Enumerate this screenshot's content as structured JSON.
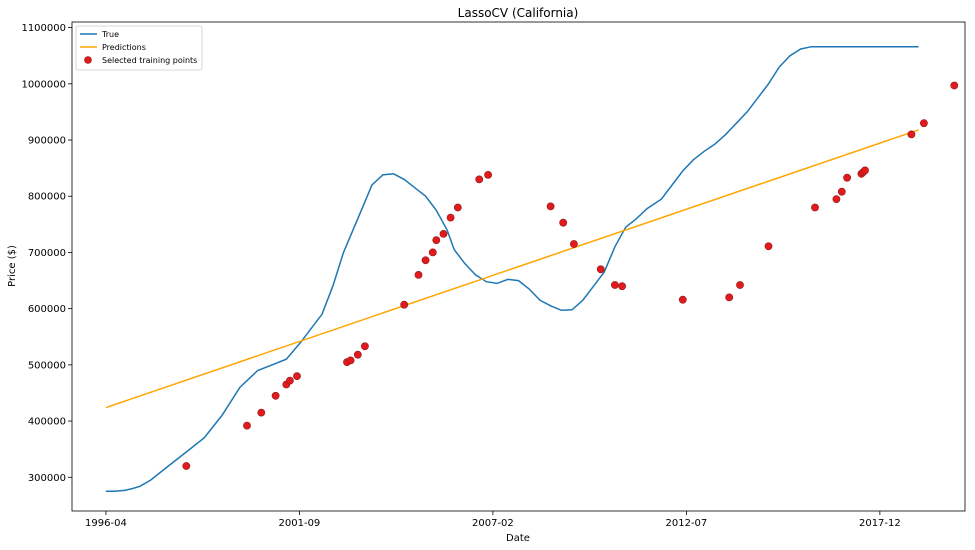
{
  "chart_data": {
    "type": "line",
    "title": "LassoCV (California)",
    "xlabel": "Date",
    "ylabel": "Price ($)",
    "x_ticks": [
      "1996-04",
      "2001-09",
      "2007-02",
      "2012-07",
      "2017-12"
    ],
    "y_ticks": [
      "300000",
      "400000",
      "500000",
      "600000",
      "700000",
      "800000",
      "900000",
      "1000000",
      "1100000"
    ],
    "xlim": [
      1995.3,
      2020.3
    ],
    "ylim": [
      240000,
      1110000
    ],
    "grid": false,
    "legend_position": "top-left",
    "colors": {
      "true": "#1f77b4",
      "predictions": "#ffa500",
      "points": "#e31a1c",
      "points_edge": "#8b1a1a"
    },
    "series": [
      {
        "name": "True",
        "kind": "line",
        "x": [
          1996.25,
          1996.5,
          1996.8,
          1997.0,
          1997.2,
          1997.5,
          1998.0,
          1998.5,
          1999.0,
          1999.5,
          2000.0,
          2000.5,
          2000.9,
          2001.3,
          2001.7,
          2002.0,
          2002.3,
          2002.6,
          2002.9,
          2003.3,
          2003.7,
          2004.0,
          2004.3,
          2004.6,
          2004.9,
          2005.2,
          2005.5,
          2005.8,
          2006.0,
          2006.3,
          2006.6,
          2006.9,
          2007.2,
          2007.5,
          2007.8,
          2008.1,
          2008.4,
          2008.7,
          2009.0,
          2009.3,
          2009.6,
          2009.9,
          2010.2,
          2010.5,
          2010.8,
          2011.1,
          2011.4,
          2011.8,
          2012.1,
          2012.4,
          2012.7,
          2013.0,
          2013.3,
          2013.6,
          2013.9,
          2014.2,
          2014.5,
          2014.8,
          2015.1,
          2015.4,
          2015.7,
          2016.0,
          2016.3,
          2016.6,
          2016.9,
          2017.2,
          2017.5,
          2017.8,
          2018.1,
          2018.4,
          2018.7,
          2019.0
        ],
        "y": [
          275000,
          275000,
          277000,
          280000,
          284000,
          295000,
          320000,
          345000,
          370000,
          410000,
          460000,
          490000,
          500000,
          510000,
          540000,
          565000,
          590000,
          640000,
          700000,
          760000,
          820000,
          838000,
          840000,
          830000,
          815000,
          800000,
          775000,
          740000,
          705000,
          680000,
          660000,
          648000,
          645000,
          652000,
          650000,
          635000,
          615000,
          605000,
          597000,
          598000,
          615000,
          640000,
          665000,
          710000,
          745000,
          760000,
          778000,
          795000,
          820000,
          845000,
          865000,
          880000,
          893000,
          910000,
          930000,
          950000,
          975000,
          1000000,
          1030000,
          1050000,
          1062000,
          1066000,
          1066000,
          1066000,
          1066000,
          1066000,
          1066000,
          1066000,
          1066000,
          1066000,
          1066000,
          1066000
        ]
      },
      {
        "name": "Predictions",
        "kind": "line",
        "x": [
          1996.25,
          2019.0
        ],
        "y": [
          424000,
          918000
        ]
      },
      {
        "name": "Selected training points",
        "kind": "scatter",
        "x": [
          1998.5,
          2000.2,
          2000.6,
          2001.0,
          2001.3,
          2001.4,
          2001.6,
          2003.0,
          2003.1,
          2003.3,
          2003.5,
          2004.6,
          2005.0,
          2005.2,
          2005.4,
          2005.5,
          2005.7,
          2005.9,
          2006.1,
          2006.7,
          2006.95,
          2008.7,
          2009.05,
          2009.35,
          2010.1,
          2010.5,
          2010.7,
          2012.4,
          2013.7,
          2014.0,
          2014.8,
          2016.1,
          2016.7,
          2016.85,
          2017.0,
          2017.4,
          2017.45,
          2017.5,
          2018.8,
          2019.15,
          2020.0
        ],
        "y": [
          320000,
          392000,
          415000,
          445000,
          465000,
          472000,
          480000,
          505000,
          508000,
          518000,
          533000,
          607000,
          660000,
          686000,
          700000,
          722000,
          733000,
          762000,
          780000,
          830000,
          838000,
          782000,
          753000,
          715000,
          670000,
          642000,
          640000,
          616000,
          620000,
          642000,
          711000,
          780000,
          795000,
          808000,
          833000,
          840000,
          843000,
          846000,
          910000,
          930000,
          997000
        ]
      }
    ]
  }
}
